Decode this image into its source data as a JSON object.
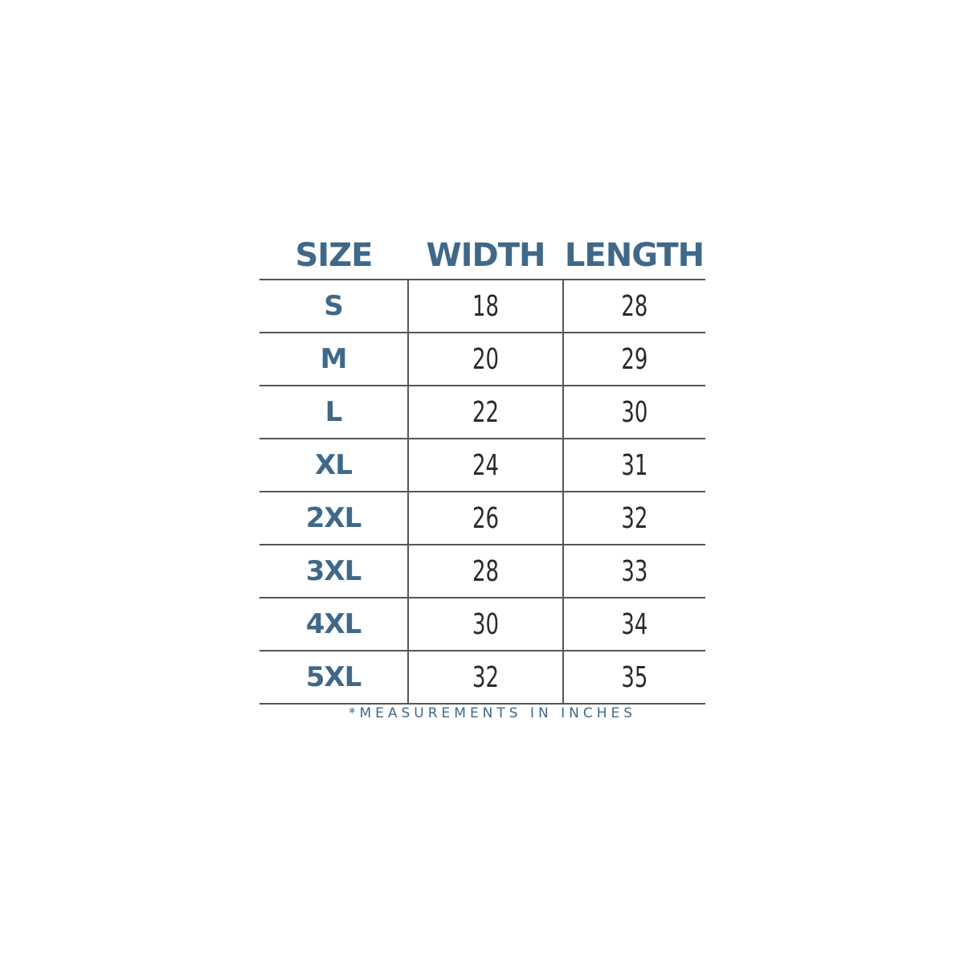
{
  "headers": {
    "size": "SIZE",
    "width": "WIDTH",
    "length": "LENGTH"
  },
  "rows": [
    {
      "size": "S",
      "width": "18",
      "length": "28"
    },
    {
      "size": "M",
      "width": "20",
      "length": "29"
    },
    {
      "size": "L",
      "width": "22",
      "length": "30"
    },
    {
      "size": "XL",
      "width": "24",
      "length": "31"
    },
    {
      "size": "2XL",
      "width": "26",
      "length": "32"
    },
    {
      "size": "3XL",
      "width": "28",
      "length": "33"
    },
    {
      "size": "4XL",
      "width": "30",
      "length": "34"
    },
    {
      "size": "5XL",
      "width": "32",
      "length": "35"
    }
  ],
  "note": "*MEASUREMENTS  IN  INCHES",
  "colors": {
    "heading": "#3f6889",
    "lines": "#555555",
    "numbers": "#2a2a2a"
  }
}
